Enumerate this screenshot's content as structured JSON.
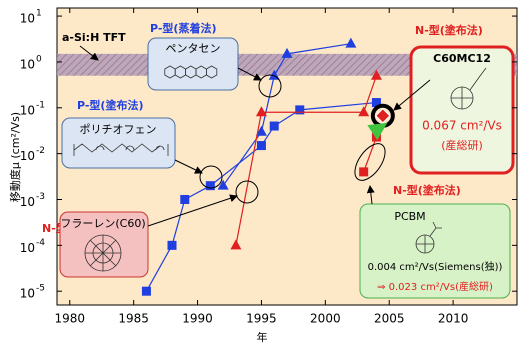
{
  "chart_data": {
    "type": "line",
    "log_y": true,
    "ylabel": "移動度μ (cm²/Vs)",
    "xlabel": "年",
    "xlim": [
      1979,
      2015
    ],
    "ylim": [
      5e-06,
      15
    ],
    "xticks": [
      1980,
      1985,
      1990,
      1995,
      2000,
      2005,
      2010
    ],
    "yticks": [
      {
        "value": 10,
        "label": "10",
        "exponent": "1"
      },
      {
        "value": 1,
        "label": "10",
        "exponent": "0"
      },
      {
        "value": 0.1,
        "label": "10",
        "exponent": "-1"
      },
      {
        "value": 0.01,
        "label": "10",
        "exponent": "-2"
      },
      {
        "value": 0.001,
        "label": "10",
        "exponent": "-3"
      },
      {
        "value": 0.0001,
        "label": "10",
        "exponent": "-4"
      },
      {
        "value": 1e-05,
        "label": "10",
        "exponent": "-5"
      }
    ],
    "band": {
      "label": "a-Si:H TFT",
      "range": [
        0.5,
        1.5
      ]
    },
    "series": [
      {
        "name": "P-型(塗布法)",
        "color": "#1f3fe0",
        "marker": "square",
        "box_label": "ポリチオフェン",
        "x": [
          1986,
          1988,
          1989,
          1991,
          1995,
          1996,
          1998,
          2004
        ],
        "values": [
          1e-05,
          0.0001,
          0.001,
          0.002,
          0.015,
          0.04,
          0.09,
          0.13
        ]
      },
      {
        "name": "P-型(蒸着法)",
        "color": "#1f3fe0",
        "marker": "triangle",
        "box_label": "ペンタセン",
        "x": [
          1992,
          1995,
          1996,
          1997,
          2002
        ],
        "values": [
          0.002,
          0.03,
          0.5,
          1.5,
          2.5
        ]
      },
      {
        "name": "N-型(蒸着法)",
        "color": "#e02020",
        "marker": "triangle",
        "box_label": "フラーレン(C60)",
        "x": [
          1993,
          1995,
          2003,
          2004
        ],
        "values": [
          0.0001,
          0.08,
          0.08,
          0.5
        ]
      },
      {
        "name": "N-型(塗布法)",
        "color": "#e02020",
        "marker": "square",
        "box_label": "PCBM",
        "x": [
          2003,
          2004
        ],
        "values": [
          0.004,
          0.023
        ],
        "value_labels": [
          "0.004 cm²/Vs(Siemens(独))",
          "⇒ 0.023 cm²/Vs(産総研)"
        ]
      }
    ],
    "highlight": {
      "label": "C60MC12",
      "x": 2004.5,
      "value": 0.067,
      "value_label": "0.067 cm²/Vs",
      "source": "(産総研)",
      "color": "#e02020"
    }
  }
}
